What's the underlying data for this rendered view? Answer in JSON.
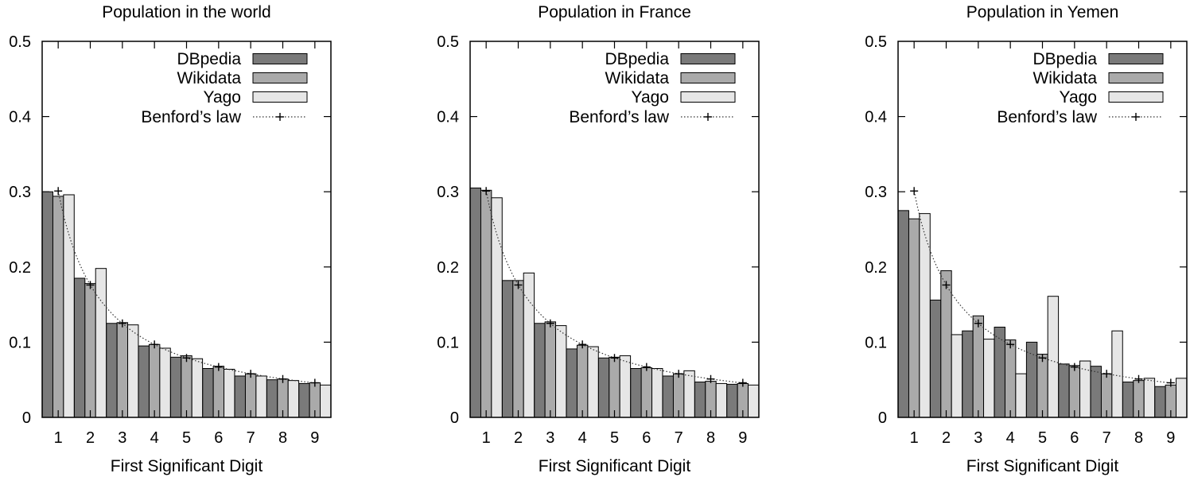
{
  "chart_data": [
    {
      "type": "bar",
      "title": "Population in the world",
      "xlabel": "First Significant Digit",
      "ylabel": "",
      "ylim": [
        0,
        0.5
      ],
      "yticks": [
        "0",
        "0.1",
        "0.2",
        "0.3",
        "0.4",
        "0.5"
      ],
      "categories": [
        "1",
        "2",
        "3",
        "4",
        "5",
        "6",
        "7",
        "8",
        "9"
      ],
      "legend_position": "top-right",
      "series": [
        {
          "name": "DBpedia",
          "color": "#7a7a7a",
          "values": [
            0.3,
            0.185,
            0.125,
            0.095,
            0.08,
            0.065,
            0.055,
            0.05,
            0.045
          ]
        },
        {
          "name": "Wikidata",
          "color": "#aaaaaa",
          "values": [
            0.294,
            0.178,
            0.126,
            0.097,
            0.082,
            0.068,
            0.058,
            0.051,
            0.046
          ]
        },
        {
          "name": "Yago",
          "color": "#e6e6e6",
          "values": [
            0.296,
            0.198,
            0.123,
            0.092,
            0.078,
            0.064,
            0.055,
            0.049,
            0.043
          ]
        }
      ],
      "reference": {
        "name": "Benford’s law",
        "values": [
          0.301,
          0.176,
          0.125,
          0.097,
          0.079,
          0.067,
          0.058,
          0.051,
          0.046
        ]
      }
    },
    {
      "type": "bar",
      "title": "Population in France",
      "xlabel": "First Significant Digit",
      "ylabel": "",
      "ylim": [
        0,
        0.5
      ],
      "yticks": [
        "0",
        "0.1",
        "0.2",
        "0.3",
        "0.4",
        "0.5"
      ],
      "categories": [
        "1",
        "2",
        "3",
        "4",
        "5",
        "6",
        "7",
        "8",
        "9"
      ],
      "legend_position": "top-right",
      "series": [
        {
          "name": "DBpedia",
          "color": "#7a7a7a",
          "values": [
            0.305,
            0.182,
            0.125,
            0.091,
            0.079,
            0.065,
            0.055,
            0.047,
            0.044
          ]
        },
        {
          "name": "Wikidata",
          "color": "#aaaaaa",
          "values": [
            0.302,
            0.182,
            0.127,
            0.096,
            0.08,
            0.066,
            0.058,
            0.048,
            0.045
          ]
        },
        {
          "name": "Yago",
          "color": "#e6e6e6",
          "values": [
            0.292,
            0.192,
            0.122,
            0.094,
            0.082,
            0.065,
            0.062,
            0.045,
            0.043
          ]
        }
      ],
      "reference": {
        "name": "Benford’s law",
        "values": [
          0.301,
          0.176,
          0.125,
          0.097,
          0.079,
          0.067,
          0.058,
          0.051,
          0.046
        ]
      }
    },
    {
      "type": "bar",
      "title": "Population in Yemen",
      "xlabel": "First Significant Digit",
      "ylabel": "",
      "ylim": [
        0,
        0.5
      ],
      "yticks": [
        "0",
        "0.1",
        "0.2",
        "0.3",
        "0.4",
        "0.5"
      ],
      "categories": [
        "1",
        "2",
        "3",
        "4",
        "5",
        "6",
        "7",
        "8",
        "9"
      ],
      "legend_position": "top-right",
      "series": [
        {
          "name": "DBpedia",
          "color": "#7a7a7a",
          "values": [
            0.275,
            0.156,
            0.115,
            0.12,
            0.1,
            0.071,
            0.068,
            0.047,
            0.041
          ]
        },
        {
          "name": "Wikidata",
          "color": "#aaaaaa",
          "values": [
            0.264,
            0.195,
            0.135,
            0.103,
            0.084,
            0.069,
            0.058,
            0.049,
            0.043
          ]
        },
        {
          "name": "Yago",
          "color": "#e6e6e6",
          "values": [
            0.271,
            0.11,
            0.104,
            0.058,
            0.161,
            0.075,
            0.115,
            0.052,
            0.052
          ]
        }
      ],
      "reference": {
        "name": "Benford’s law",
        "values": [
          0.301,
          0.176,
          0.125,
          0.097,
          0.079,
          0.067,
          0.058,
          0.051,
          0.046
        ]
      }
    }
  ]
}
